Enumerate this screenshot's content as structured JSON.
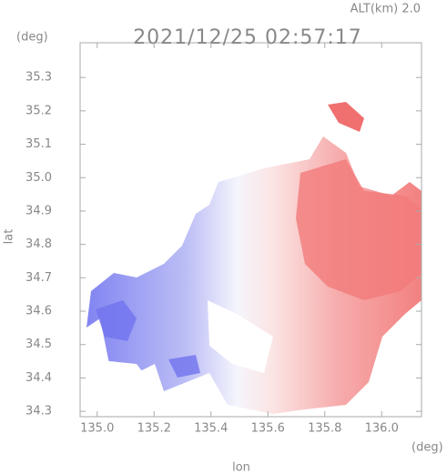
{
  "chart_data": {
    "type": "map",
    "title": "2021/12/25 02:57:17",
    "subtitle": "ALT(km) 2.0",
    "x_label": "lon",
    "y_label": "lat",
    "x_unit": "(deg)",
    "y_unit": "(deg)",
    "xlim": [
      134.94,
      136.14
    ],
    "ylim": [
      34.284,
      35.404
    ],
    "xticks": [
      {
        "value": 135.0,
        "label": "135.0"
      },
      135.2,
      135.4,
      135.6,
      135.8,
      {
        "value": 136.0,
        "label": "136.0"
      }
    ],
    "yticks": [
      34.3,
      34.4,
      34.5,
      34.6,
      34.7,
      34.8,
      34.9,
      {
        "value": 35.0,
        "label": "35.0"
      },
      35.1,
      35.2,
      35.3
    ]
  }
}
